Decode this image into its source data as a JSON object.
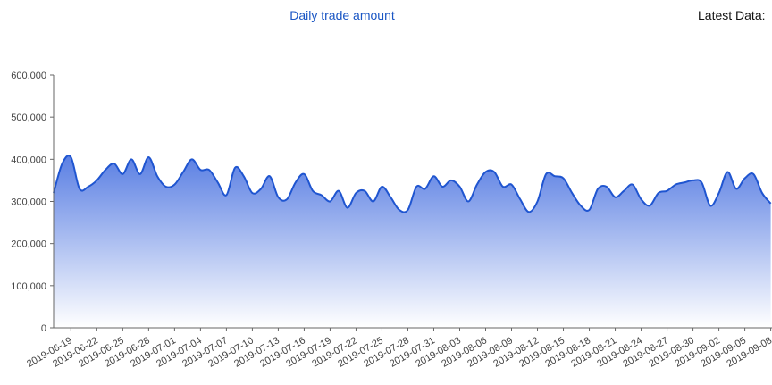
{
  "chart_data": {
    "type": "area",
    "title": "Daily trade amount",
    "subtitle": "Latest Data:",
    "categories": [
      null,
      null,
      "2019-06-19",
      null,
      null,
      "2019-06-22",
      null,
      null,
      "2019-06-25",
      null,
      null,
      "2019-06-28",
      null,
      null,
      "2019-07-01",
      null,
      null,
      "2019-07-04",
      null,
      null,
      "2019-07-07",
      null,
      null,
      "2019-07-10",
      null,
      null,
      "2019-07-13",
      null,
      null,
      "2019-07-16",
      null,
      null,
      "2019-07-19",
      null,
      null,
      "2019-07-22",
      null,
      null,
      "2019-07-25",
      null,
      null,
      "2019-07-28",
      null,
      null,
      "2019-07-31",
      null,
      null,
      "2019-08-03",
      null,
      null,
      "2019-08-06",
      null,
      null,
      "2019-08-09",
      null,
      null,
      "2019-08-12",
      null,
      null,
      "2019-08-15",
      null,
      null,
      "2019-08-18",
      null,
      null,
      "2019-08-21",
      null,
      null,
      "2019-08-24",
      null,
      null,
      "2019-08-27",
      null,
      null,
      "2019-08-30",
      null,
      null,
      "2019-09-02",
      null,
      null,
      "2019-09-05",
      null,
      null,
      "2019-09-08"
    ],
    "values": [
      320000,
      390000,
      405000,
      330000,
      335000,
      350000,
      375000,
      390000,
      365000,
      400000,
      365000,
      405000,
      360000,
      335000,
      340000,
      370000,
      400000,
      375000,
      375000,
      345000,
      315000,
      380000,
      360000,
      320000,
      330000,
      360000,
      310000,
      305000,
      345000,
      365000,
      325000,
      315000,
      300000,
      325000,
      285000,
      320000,
      325000,
      300000,
      335000,
      310000,
      280000,
      280000,
      335000,
      330000,
      360000,
      335000,
      350000,
      335000,
      300000,
      340000,
      370000,
      370000,
      335000,
      340000,
      305000,
      275000,
      300000,
      365000,
      360000,
      355000,
      320000,
      290000,
      280000,
      330000,
      335000,
      310000,
      325000,
      340000,
      305000,
      290000,
      320000,
      325000,
      340000,
      345000,
      350000,
      345000,
      290000,
      320000,
      370000,
      330000,
      355000,
      365000,
      320000,
      295000
    ],
    "color": "#1f55d0",
    "ylim": [
      0,
      600000
    ],
    "yticks": [
      0,
      {
        "value": 100000,
        "label": "100,000"
      },
      {
        "value": 200000,
        "label": "200,000"
      },
      {
        "value": 300000,
        "label": "300,000"
      },
      {
        "value": 400000,
        "label": "400,000"
      },
      {
        "value": 500000,
        "label": "500,000"
      },
      {
        "value": 600000,
        "label": "600,000"
      }
    ]
  }
}
